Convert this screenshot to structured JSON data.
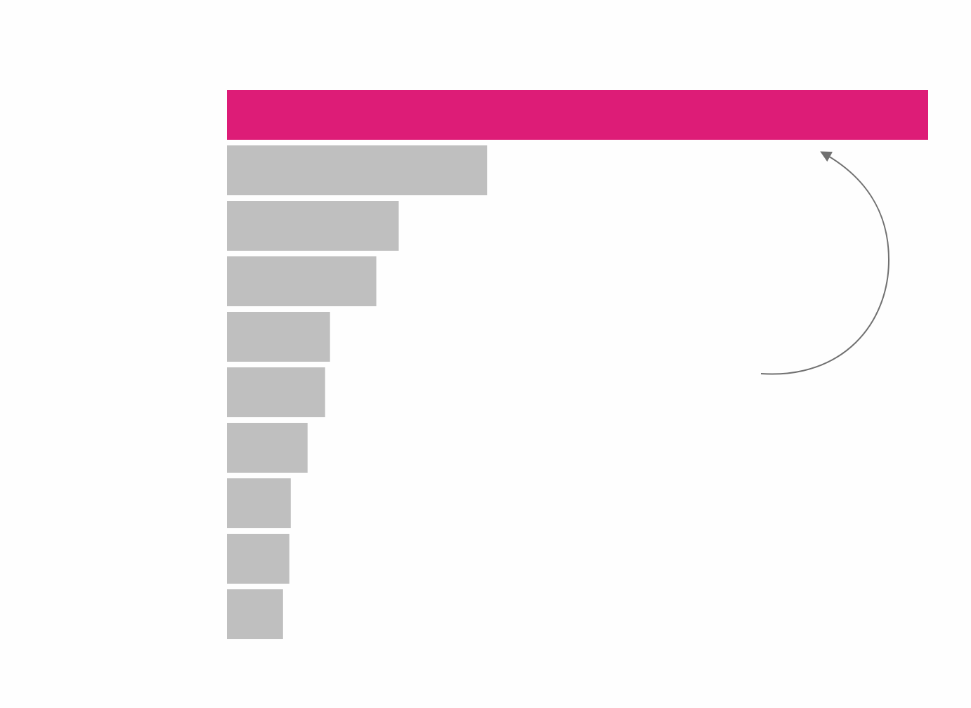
{
  "chart_data": {
    "type": "barh",
    "categories": [
      null,
      null,
      null,
      null,
      null,
      null,
      null,
      null,
      null,
      null
    ],
    "values": [
      100,
      37.1,
      24.5,
      21.3,
      14.7,
      14.0,
      11.5,
      9.1,
      8.9,
      8.0
    ],
    "colors": [
      "#dd1c77",
      "#bfbfbf",
      "#bfbfbf",
      "#bfbfbf",
      "#bfbfbf",
      "#bfbfbf",
      "#bfbfbf",
      "#bfbfbf",
      "#bfbfbf",
      "#bfbfbf"
    ],
    "xlim": [
      0,
      100
    ],
    "grid": false
  }
}
